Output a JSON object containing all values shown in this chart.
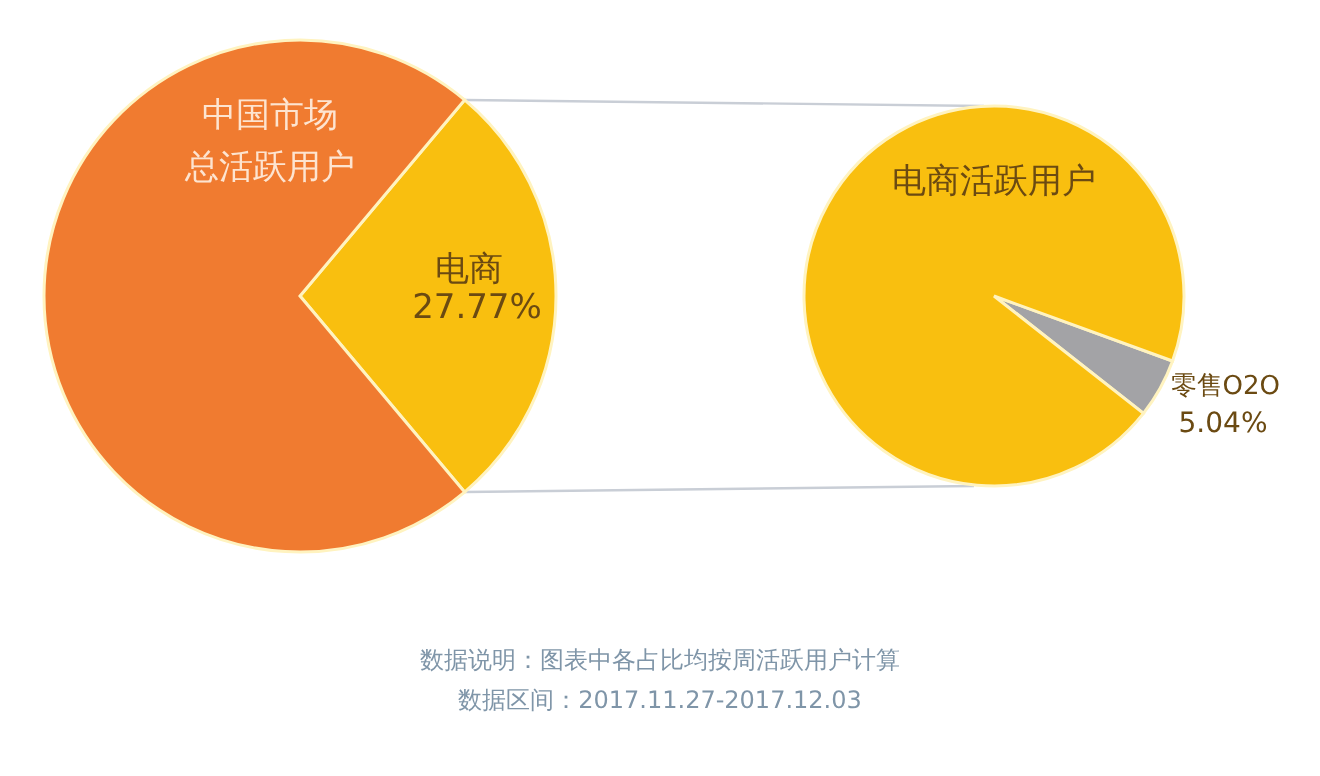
{
  "chart_data": [
    {
      "type": "pie",
      "categories": [
        "中国市场总活跃用户",
        "电商"
      ],
      "values": [
        72.23,
        27.77
      ],
      "colors": [
        "#f07b30",
        "#f9bf0f"
      ],
      "value_labels": [
        null,
        "27.77%"
      ],
      "annotations": [
        "数据说明：图表中各占比均按周活跃用户计算",
        "数据区间：2017.11.27-2017.12.03"
      ]
    },
    {
      "type": "pie",
      "categories": [
        "电商活跃用户",
        "零售O2O"
      ],
      "values": [
        94.96,
        5.04
      ],
      "colors": [
        "#f9bf0f",
        "#a3a3a6"
      ],
      "value_labels": [
        null,
        "5.04%"
      ]
    }
  ]
}
